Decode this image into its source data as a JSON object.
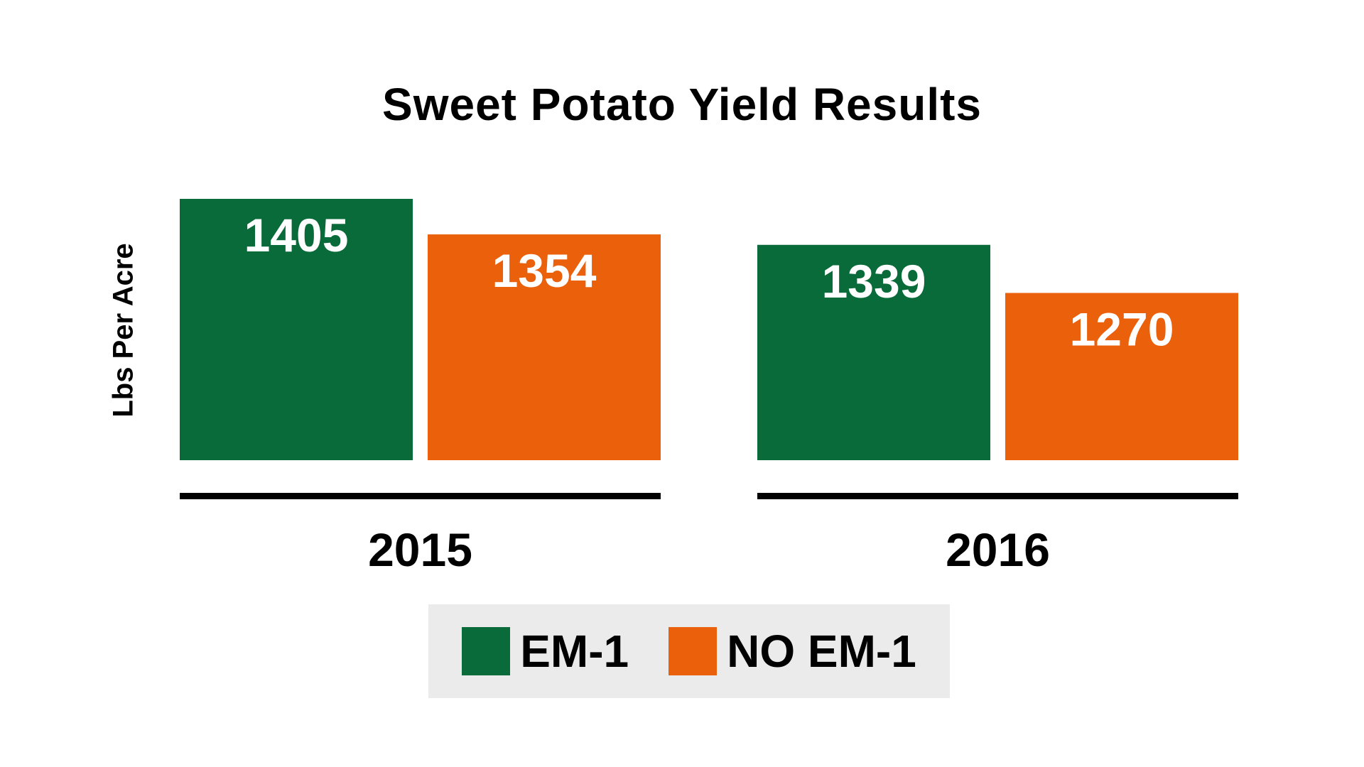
{
  "chart_data": {
    "type": "bar",
    "title": "Sweet Potato Yield Results",
    "ylabel": "Lbs Per Acre",
    "xlabel": "",
    "categories": [
      "2015",
      "2016"
    ],
    "series": [
      {
        "name": "EM-1",
        "color": "#0a6b3a",
        "values": [
          1405,
          1339
        ]
      },
      {
        "name": "NO EM-1",
        "color": "#ea600b",
        "values": [
          1354,
          1270
        ]
      }
    ],
    "ylim": [
      1030,
      1405
    ],
    "grid": false,
    "legend_position": "bottom-center",
    "data_labels": true
  },
  "colors": {
    "label_text": "#ffffff",
    "axis_line": "#000000",
    "legend_background": "#ebebeb"
  }
}
